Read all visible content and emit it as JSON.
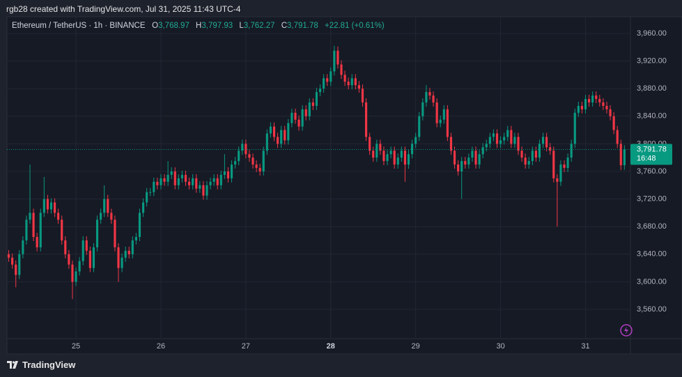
{
  "header": {
    "text": "rgb28 created with TradingView.com, Jul 31, 2025 11:43 UTC-4"
  },
  "footer": {
    "brand": "TradingView"
  },
  "chart_data": {
    "type": "candlestick",
    "symbol": "Ethereum / TetherUS · 1h · BINANCE",
    "legend": {
      "o": "O",
      "open": "3,768.97",
      "h": "H",
      "high": "3,797.93",
      "l": "L",
      "low": "3,762.27",
      "c": "C",
      "close": "3,791.78",
      "change": "+22.81 (+0.61%)"
    },
    "last_price_label": "3,791.78",
    "countdown": "16:48",
    "up_color": "#089981",
    "down_color": "#f23645",
    "grid": true,
    "xlim": [
      -0.5,
      175.7
    ],
    "xticks": [
      {
        "value": 19,
        "label": "25"
      },
      {
        "value": 43,
        "label": "26"
      },
      {
        "value": 67,
        "label": "27"
      },
      {
        "value": 91,
        "label": "28",
        "bold": true
      },
      {
        "value": 115,
        "label": "29"
      },
      {
        "value": 139,
        "label": "30"
      },
      {
        "value": 163,
        "label": "31"
      }
    ],
    "ylim": [
      3518.6,
      3983.2
    ],
    "yticks": [
      {
        "value": 3560,
        "label": "3,560.00"
      },
      {
        "value": 3600,
        "label": "3,600.00"
      },
      {
        "value": 3640,
        "label": "3,640.00"
      },
      {
        "value": 3680,
        "label": "3,680.00"
      },
      {
        "value": 3720,
        "label": "3,720.00"
      },
      {
        "value": 3760,
        "label": "3,760.00"
      },
      {
        "value": 3800,
        "label": "3,800.00"
      },
      {
        "value": 3840,
        "label": "3,840.00"
      },
      {
        "value": 3880,
        "label": "3,880.00"
      },
      {
        "value": 3920,
        "label": "3,920.00"
      },
      {
        "value": 3960,
        "label": "3,960.00"
      }
    ],
    "x": [
      0,
      1,
      2,
      3,
      4,
      5,
      6,
      7,
      8,
      9,
      10,
      11,
      12,
      13,
      14,
      15,
      16,
      17,
      18,
      19,
      20,
      21,
      22,
      23,
      24,
      25,
      26,
      27,
      28,
      29,
      30,
      31,
      32,
      33,
      34,
      35,
      36,
      37,
      38,
      39,
      40,
      41,
      42,
      43,
      44,
      45,
      46,
      47,
      48,
      49,
      50,
      51,
      52,
      53,
      54,
      55,
      56,
      57,
      58,
      59,
      60,
      61,
      62,
      63,
      64,
      65,
      66,
      67,
      68,
      69,
      70,
      71,
      72,
      73,
      74,
      75,
      76,
      77,
      78,
      79,
      80,
      81,
      82,
      83,
      84,
      85,
      86,
      87,
      88,
      89,
      90,
      91,
      92,
      93,
      94,
      95,
      96,
      97,
      98,
      99,
      100,
      101,
      102,
      103,
      104,
      105,
      106,
      107,
      108,
      109,
      110,
      111,
      112,
      113,
      114,
      115,
      116,
      117,
      118,
      119,
      120,
      121,
      122,
      123,
      124,
      125,
      126,
      127,
      128,
      129,
      130,
      131,
      132,
      133,
      134,
      135,
      136,
      137,
      138,
      139,
      140,
      141,
      142,
      143,
      144,
      145,
      146,
      147,
      148,
      149,
      150,
      151,
      152,
      153,
      154,
      155,
      156,
      157,
      158,
      159,
      160,
      161,
      162,
      163,
      164,
      165,
      166,
      167,
      168,
      169,
      170,
      171,
      172,
      173,
      174
    ],
    "open": [
      3640,
      3635,
      3625,
      3610,
      3640,
      3660,
      3690,
      3700,
      3665,
      3650,
      3700,
      3720,
      3705,
      3715,
      3700,
      3690,
      3660,
      3640,
      3625,
      3600,
      3615,
      3630,
      3660,
      3645,
      3620,
      3650,
      3690,
      3700,
      3720,
      3700,
      3690,
      3650,
      3620,
      3635,
      3645,
      3640,
      3660,
      3665,
      3700,
      3715,
      3730,
      3730,
      3745,
      3740,
      3750,
      3745,
      3755,
      3760,
      3740,
      3750,
      3755,
      3745,
      3740,
      3750,
      3735,
      3740,
      3725,
      3740,
      3745,
      3750,
      3740,
      3755,
      3760,
      3750,
      3770,
      3775,
      3790,
      3800,
      3785,
      3780,
      3770,
      3765,
      3760,
      3790,
      3815,
      3825,
      3810,
      3800,
      3820,
      3805,
      3830,
      3845,
      3835,
      3825,
      3850,
      3840,
      3860,
      3855,
      3875,
      3880,
      3895,
      3890,
      3905,
      3935,
      3915,
      3900,
      3890,
      3885,
      3895,
      3885,
      3880,
      3860,
      3810,
      3790,
      3780,
      3800,
      3790,
      3775,
      3785,
      3790,
      3770,
      3780,
      3790,
      3770,
      3785,
      3800,
      3810,
      3840,
      3860,
      3875,
      3870,
      3860,
      3830,
      3835,
      3850,
      3810,
      3790,
      3770,
      3760,
      3775,
      3770,
      3780,
      3790,
      3770,
      3785,
      3795,
      3800,
      3810,
      3815,
      3800,
      3805,
      3810,
      3820,
      3800,
      3810,
      3790,
      3780,
      3770,
      3775,
      3790,
      3780,
      3800,
      3810,
      3795,
      3790,
      3750,
      3745,
      3770,
      3765,
      3780,
      3800,
      3845,
      3855,
      3850,
      3865,
      3860,
      3870,
      3865,
      3860,
      3855,
      3850,
      3840,
      3820,
      3800,
      3768.97
    ],
    "high": [
      3646,
      3641,
      3631,
      3646,
      3666,
      3696,
      3770,
      3706,
      3671,
      3706,
      3752,
      3726,
      3721,
      3721,
      3706,
      3696,
      3666,
      3646,
      3631,
      3621,
      3636,
      3666,
      3666,
      3651,
      3656,
      3696,
      3706,
      3740,
      3726,
      3706,
      3696,
      3656,
      3641,
      3651,
      3651,
      3666,
      3671,
      3706,
      3721,
      3736,
      3736,
      3751,
      3751,
      3756,
      3756,
      3775,
      3766,
      3766,
      3756,
      3761,
      3761,
      3751,
      3756,
      3756,
      3746,
      3746,
      3746,
      3751,
      3756,
      3756,
      3761,
      3785,
      3766,
      3776,
      3781,
      3796,
      3806,
      3806,
      3791,
      3786,
      3776,
      3771,
      3796,
      3821,
      3831,
      3831,
      3816,
      3826,
      3826,
      3836,
      3851,
      3851,
      3841,
      3856,
      3856,
      3866,
      3866,
      3881,
      3886,
      3901,
      3901,
      3911,
      3942,
      3941,
      3921,
      3906,
      3896,
      3901,
      3901,
      3891,
      3886,
      3866,
      3816,
      3796,
      3806,
      3806,
      3796,
      3791,
      3796,
      3796,
      3786,
      3796,
      3796,
      3791,
      3806,
      3816,
      3846,
      3866,
      3885,
      3881,
      3876,
      3866,
      3841,
      3856,
      3856,
      3816,
      3796,
      3776,
      3781,
      3781,
      3786,
      3796,
      3796,
      3791,
      3801,
      3806,
      3816,
      3821,
      3821,
      3811,
      3816,
      3826,
      3826,
      3816,
      3816,
      3796,
      3786,
      3781,
      3796,
      3796,
      3806,
      3816,
      3816,
      3801,
      3796,
      3756,
      3776,
      3776,
      3786,
      3806,
      3851,
      3861,
      3861,
      3871,
      3871,
      3876,
      3876,
      3871,
      3866,
      3861,
      3856,
      3846,
      3826,
      3806,
      3797.93
    ],
    "low": [
      3629,
      3619,
      3592,
      3604,
      3634,
      3654,
      3684,
      3659,
      3644,
      3644,
      3694,
      3699,
      3699,
      3694,
      3684,
      3654,
      3634,
      3619,
      3575,
      3594,
      3609,
      3624,
      3639,
      3614,
      3614,
      3644,
      3684,
      3694,
      3694,
      3684,
      3644,
      3600,
      3614,
      3629,
      3634,
      3634,
      3654,
      3659,
      3694,
      3709,
      3724,
      3724,
      3734,
      3734,
      3739,
      3739,
      3749,
      3734,
      3734,
      3744,
      3739,
      3734,
      3734,
      3729,
      3729,
      3719,
      3719,
      3734,
      3739,
      3734,
      3734,
      3749,
      3744,
      3744,
      3764,
      3769,
      3784,
      3779,
      3774,
      3764,
      3759,
      3754,
      3754,
      3784,
      3809,
      3804,
      3794,
      3794,
      3799,
      3799,
      3824,
      3829,
      3819,
      3819,
      3834,
      3834,
      3849,
      3849,
      3869,
      3874,
      3884,
      3884,
      3899,
      3909,
      3894,
      3884,
      3879,
      3879,
      3879,
      3874,
      3854,
      3804,
      3784,
      3774,
      3774,
      3784,
      3769,
      3769,
      3779,
      3764,
      3764,
      3774,
      3745,
      3764,
      3779,
      3794,
      3804,
      3834,
      3854,
      3864,
      3854,
      3824,
      3824,
      3829,
      3804,
      3784,
      3764,
      3754,
      3720,
      3764,
      3764,
      3774,
      3764,
      3764,
      3779,
      3789,
      3794,
      3804,
      3794,
      3794,
      3799,
      3804,
      3794,
      3794,
      3784,
      3774,
      3764,
      3764,
      3769,
      3774,
      3774,
      3794,
      3789,
      3784,
      3744,
      3680,
      3739,
      3759,
      3759,
      3774,
      3794,
      3839,
      3844,
      3844,
      3854,
      3854,
      3859,
      3854,
      3849,
      3844,
      3834,
      3814,
      3794,
      3762,
      3762.27
    ],
    "close": [
      3635,
      3625,
      3610,
      3640,
      3660,
      3690,
      3700,
      3665,
      3650,
      3700,
      3720,
      3705,
      3715,
      3700,
      3690,
      3660,
      3640,
      3625,
      3600,
      3615,
      3630,
      3660,
      3645,
      3620,
      3650,
      3690,
      3700,
      3720,
      3700,
      3690,
      3650,
      3620,
      3635,
      3645,
      3640,
      3660,
      3665,
      3700,
      3715,
      3730,
      3730,
      3745,
      3740,
      3750,
      3745,
      3755,
      3760,
      3740,
      3750,
      3755,
      3745,
      3740,
      3750,
      3735,
      3740,
      3725,
      3740,
      3745,
      3750,
      3740,
      3755,
      3760,
      3750,
      3770,
      3775,
      3790,
      3800,
      3785,
      3780,
      3770,
      3765,
      3760,
      3790,
      3815,
      3825,
      3810,
      3800,
      3820,
      3805,
      3830,
      3845,
      3835,
      3825,
      3850,
      3840,
      3860,
      3855,
      3875,
      3880,
      3895,
      3890,
      3905,
      3935,
      3915,
      3900,
      3890,
      3885,
      3895,
      3885,
      3880,
      3860,
      3810,
      3790,
      3780,
      3800,
      3790,
      3775,
      3785,
      3790,
      3770,
      3780,
      3790,
      3770,
      3785,
      3800,
      3810,
      3840,
      3860,
      3875,
      3870,
      3860,
      3830,
      3835,
      3850,
      3810,
      3790,
      3770,
      3760,
      3775,
      3770,
      3780,
      3790,
      3770,
      3785,
      3795,
      3800,
      3810,
      3815,
      3800,
      3805,
      3810,
      3820,
      3800,
      3810,
      3790,
      3780,
      3770,
      3775,
      3790,
      3780,
      3800,
      3810,
      3795,
      3790,
      3750,
      3745,
      3770,
      3765,
      3780,
      3800,
      3845,
      3855,
      3850,
      3865,
      3860,
      3870,
      3865,
      3860,
      3855,
      3850,
      3840,
      3820,
      3800,
      3768.97,
      3791.78
    ]
  }
}
